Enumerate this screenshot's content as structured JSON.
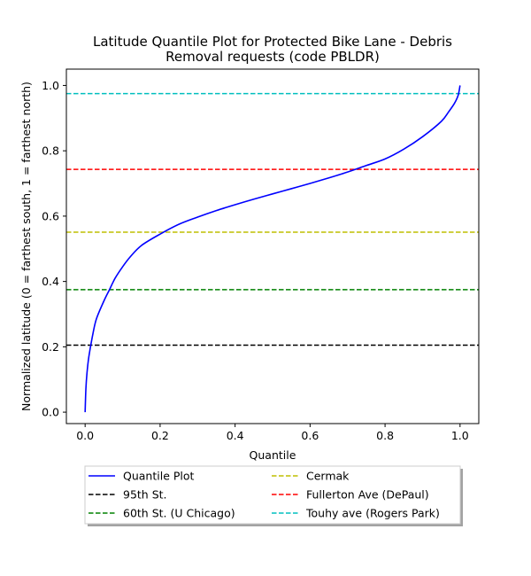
{
  "chart_data": {
    "type": "line",
    "title_lines": [
      "Latitude Quantile Plot for Protected Bike Lane - Debris",
      "Removal  requests (code PBLDR)"
    ],
    "xlabel": "Quantile",
    "ylabel": "Normalized latitude (0 = farthest south, 1 = farthest north)",
    "xlim": [
      -0.05,
      1.05
    ],
    "ylim": [
      -0.035,
      1.05
    ],
    "xticks": [
      0.0,
      0.2,
      0.4,
      0.6,
      0.8,
      1.0
    ],
    "xtick_labels": [
      "0.0",
      "0.2",
      "0.4",
      "0.6",
      "0.8",
      "1.0"
    ],
    "yticks": [
      0.0,
      0.2,
      0.4,
      0.6,
      0.8,
      1.0
    ],
    "ytick_labels": [
      "0.0",
      "0.2",
      "0.4",
      "0.6",
      "0.8",
      "1.0"
    ],
    "grid": false,
    "legend_placement": "below plot, 2 columns",
    "series": [
      {
        "name": "Quantile Plot",
        "color": "#0000ff",
        "style": "solid",
        "x": [
          0.0,
          0.002,
          0.005,
          0.01,
          0.02,
          0.03,
          0.05,
          0.065,
          0.08,
          0.1,
          0.12,
          0.15,
          0.2,
          0.25,
          0.3,
          0.35,
          0.4,
          0.45,
          0.5,
          0.55,
          0.6,
          0.65,
          0.7,
          0.75,
          0.8,
          0.85,
          0.9,
          0.95,
          0.97,
          0.985,
          0.995,
          1.0
        ],
        "y": [
          0.0,
          0.07,
          0.12,
          0.17,
          0.235,
          0.285,
          0.34,
          0.375,
          0.41,
          0.445,
          0.475,
          0.51,
          0.545,
          0.575,
          0.597,
          0.617,
          0.635,
          0.652,
          0.668,
          0.684,
          0.7,
          0.717,
          0.735,
          0.755,
          0.775,
          0.805,
          0.843,
          0.89,
          0.92,
          0.945,
          0.97,
          1.0
        ]
      }
    ],
    "reference_lines": [
      {
        "name": "95th St.",
        "y": 0.205,
        "color": "#000000",
        "style": "dashed"
      },
      {
        "name": "60th St. (U Chicago)",
        "y": 0.375,
        "color": "#008000",
        "style": "dashed"
      },
      {
        "name": "Cermak",
        "y": 0.551,
        "color": "#bfbf00",
        "style": "dashed"
      },
      {
        "name": "Fullerton Ave (DePaul)",
        "y": 0.743,
        "color": "#ff0000",
        "style": "dashed"
      },
      {
        "name": "Touhy ave (Rogers Park)",
        "y": 0.975,
        "color": "#00bfbf",
        "style": "dashed"
      }
    ],
    "legend_entries": [
      {
        "label": "Quantile Plot",
        "color": "#0000ff",
        "style": "solid"
      },
      {
        "label": "95th St.",
        "color": "#000000",
        "style": "dashed"
      },
      {
        "label": "60th St. (U Chicago)",
        "color": "#008000",
        "style": "dashed"
      },
      {
        "label": "Cermak",
        "color": "#bfbf00",
        "style": "dashed"
      },
      {
        "label": "Fullerton Ave (DePaul)",
        "color": "#ff0000",
        "style": "dashed"
      },
      {
        "label": "Touhy ave (Rogers Park)",
        "color": "#00bfbf",
        "style": "dashed"
      }
    ]
  }
}
